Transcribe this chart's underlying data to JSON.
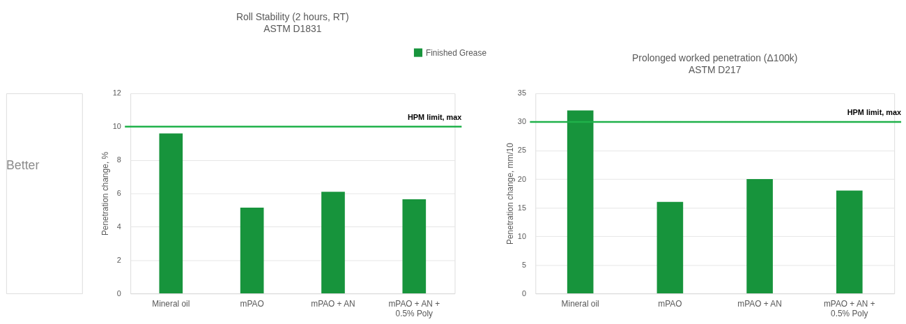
{
  "chart_data": [
    {
      "type": "bar",
      "title": "Roll Stability (2 hours, RT)",
      "subtitle": "ASTM D1831",
      "ylabel": "Penetration change, %",
      "categories": [
        "Mineral oil",
        "mPAO",
        "mPAO + AN",
        "mPAO + AN + 0.5% Poly"
      ],
      "series": [
        {
          "name": "Finished Grease",
          "color": "#17943c",
          "values": [
            9.6,
            5.15,
            6.1,
            5.65
          ]
        }
      ],
      "ylim": [
        0,
        12
      ],
      "yticks": [
        0,
        2,
        4,
        6,
        8,
        10,
        12
      ],
      "grid": "y",
      "legend": "top right",
      "ref_lines": [
        {
          "axis": "y",
          "value": 10,
          "label": "HPM limit, max",
          "color": "#1fb14a"
        }
      ],
      "annotations": [
        "Better"
      ]
    },
    {
      "type": "bar",
      "title": "Prolonged worked penetration (Δ100k)",
      "subtitle": "ASTM D217",
      "ylabel": "Penetration change, mm/10",
      "categories": [
        "Mineral oil",
        "mPAO",
        "mPAO + AN",
        "mPAO + AN + 0.5% Poly"
      ],
      "series": [
        {
          "color": "#17943c",
          "values": [
            32,
            16,
            20,
            18
          ]
        }
      ],
      "ylim": [
        0,
        35
      ],
      "yticks": [
        0,
        5,
        10,
        15,
        20,
        25,
        30,
        35
      ],
      "grid": "y",
      "ref_lines": [
        {
          "axis": "y",
          "value": 30,
          "label": "HPM limit, max",
          "color": "#1fb14a"
        }
      ]
    }
  ]
}
